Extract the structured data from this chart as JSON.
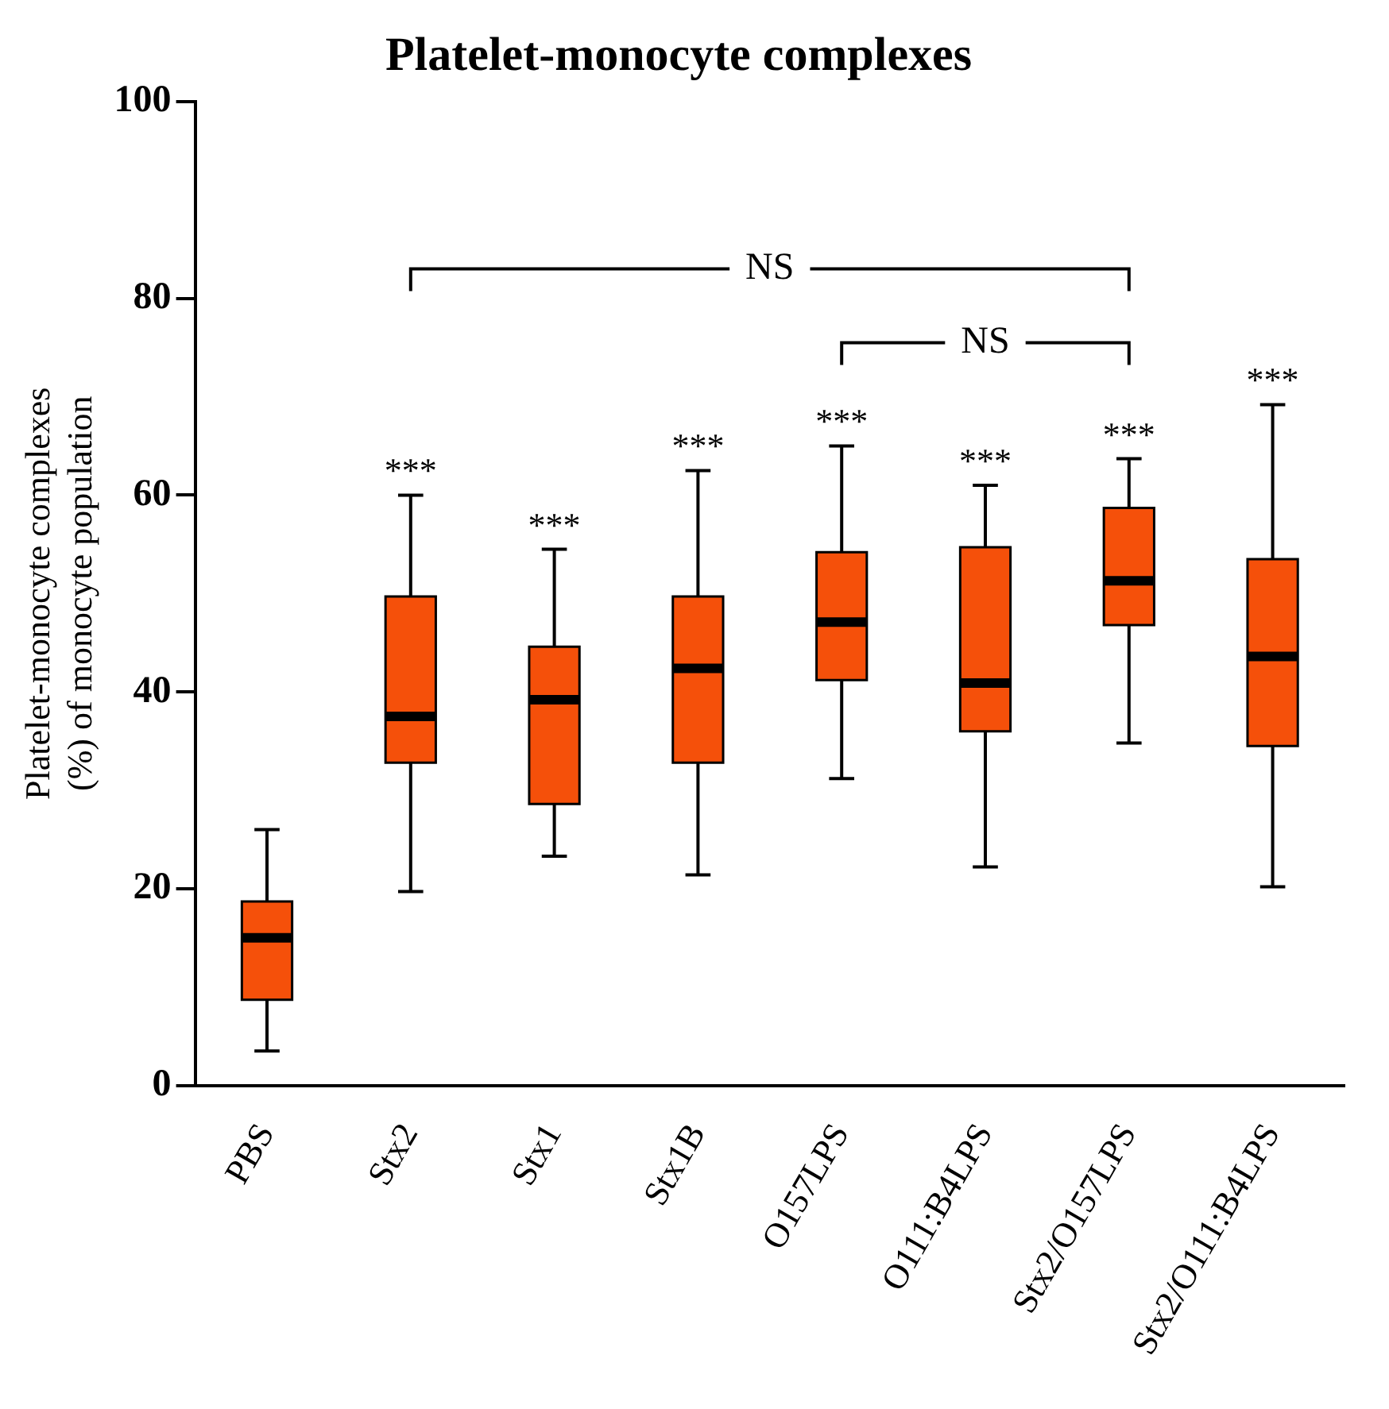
{
  "chart_data": {
    "type": "box",
    "title": "Platelet-monocyte complexes",
    "ylabel": "Platelet-monocyte complexes\n(%) of monocyte population",
    "categories": [
      "PBS",
      "Stx2",
      "Stx1",
      "Stx1B",
      "O157LPS",
      "O111:B4LPS",
      "Stx2/O157LPS",
      "Stx2/O111:B4LPS"
    ],
    "series": [
      {
        "color": "#f5500a",
        "boxes": [
          {
            "low": 3.5,
            "q1": 8.7,
            "median": 15,
            "q3": 18.7,
            "high": 26
          },
          {
            "low": 19.7,
            "q1": 32.8,
            "median": 37.5,
            "q3": 49.7,
            "high": 60
          },
          {
            "low": 23.3,
            "q1": 28.6,
            "median": 39.2,
            "q3": 44.6,
            "high": 54.5
          },
          {
            "low": 21.4,
            "q1": 32.8,
            "median": 42.4,
            "q3": 49.7,
            "high": 62.5
          },
          {
            "low": 31.2,
            "q1": 41.2,
            "median": 47.1,
            "q3": 54.2,
            "high": 65
          },
          {
            "low": 22.2,
            "q1": 36,
            "median": 40.9,
            "q3": 54.7,
            "high": 61
          },
          {
            "low": 34.8,
            "q1": 46.8,
            "median": 51.3,
            "q3": 58.7,
            "high": 63.7
          },
          {
            "low": 20.2,
            "q1": 34.5,
            "median": 43.6,
            "q3": 53.5,
            "high": 69.2
          }
        ]
      }
    ],
    "ylim": [
      0,
      100
    ],
    "yticks": [
      0,
      20,
      40,
      60,
      80,
      100
    ],
    "grid": false,
    "legend": false,
    "annotations": [
      {
        "text": "***",
        "x": "Stx2",
        "y": 60
      },
      {
        "text": "***",
        "x": "Stx1",
        "y": 54.5
      },
      {
        "text": "***",
        "x": "Stx1B",
        "y": 62.5
      },
      {
        "text": "***",
        "x": "O157LPS",
        "y": 65
      },
      {
        "text": "***",
        "x": "O111:B4LPS",
        "y": 61
      },
      {
        "text": "***",
        "x": "Stx2/O157LPS",
        "y": 63.7
      },
      {
        "text": "***",
        "x": "Stx2/O111:B4LPS",
        "y": 69.2
      },
      "NS",
      "NS"
    ]
  }
}
